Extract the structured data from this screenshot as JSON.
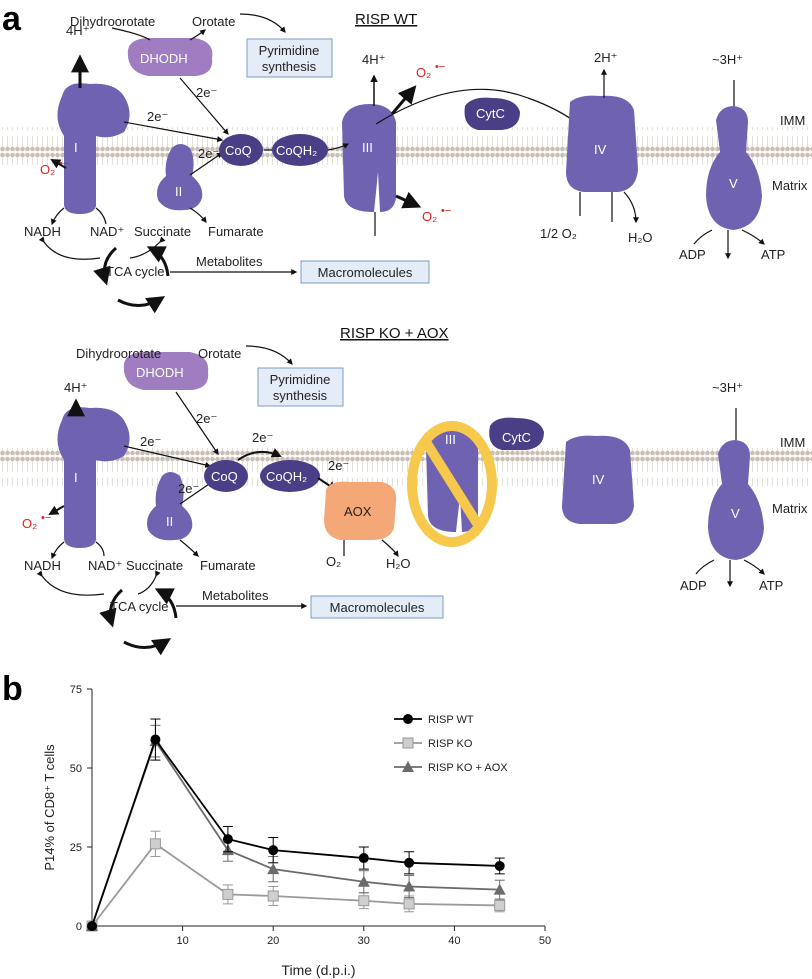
{
  "panel_a": {
    "label": "a",
    "wt": {
      "title": "RISP WT",
      "dhodh": "DHODH",
      "dihydroorotate": "Dihydroorotate",
      "orotate": "Orotate",
      "pyrimidine_1": "Pyrimidine",
      "pyrimidine_2": "synthesis",
      "h_I": "4H⁺",
      "h_III": "4H⁺",
      "h_IV": "2H⁺",
      "h_V": "~3H⁺",
      "e_I": "2e⁻",
      "e_DH": "2e⁻",
      "e_II": "2e⁻",
      "coq": "CoQ",
      "coqh2": "CoQH₂",
      "c1": "I",
      "c2": "II",
      "c3": "III",
      "c4": "IV",
      "c5": "V",
      "cytc": "CytC",
      "o2rad_1": "O₂",
      "o2rad_3a": "O₂",
      "o2rad_3b": "O₂",
      "rad": "•−",
      "imm": "IMM",
      "matrix": "Matrix",
      "nadh": "NADH",
      "nad": "NAD⁺",
      "succinate": "Succinate",
      "fumarate": "Fumarate",
      "half_o2": "1/2 O₂",
      "h2o": "H₂O",
      "adp": "ADP",
      "atp": "ATP",
      "tca": "TCA cycle",
      "metabolites": "Metabolites",
      "macromolecules": "Macromolecules"
    },
    "ko": {
      "title": "RISP KO + AOX",
      "dhodh": "DHODH",
      "dihydroorotate": "Dihydroorotate",
      "orotate": "Orotate",
      "pyrimidine_1": "Pyrimidine",
      "pyrimidine_2": "synthesis",
      "h_I": "4H⁺",
      "h_V": "~3H⁺",
      "e_I": "2e⁻",
      "e_DH": "2e⁻",
      "e_II": "2e⁻",
      "e_Q1": "2e⁻",
      "e_Q2": "2e⁻",
      "coq": "CoQ",
      "coqh2": "CoQH₂",
      "aox": "AOX",
      "c1": "I",
      "c2": "II",
      "c3": "III",
      "c4": "IV",
      "c5": "V",
      "cytc": "CytC",
      "o2rad_1": "O₂",
      "rad": "•−",
      "imm": "IMM",
      "matrix": "Matrix",
      "nadh": "NADH",
      "nad": "NAD⁺",
      "succinate": "Succinate",
      "fumarate": "Fumarate",
      "o2": "O₂",
      "h2o": "H₂O",
      "adp": "ADP",
      "atp": "ATP",
      "tca": "TCA cycle",
      "metabolites": "Metabolites",
      "macromolecules": "Macromolecules"
    }
  },
  "panel_b": {
    "label": "b"
  },
  "colors": {
    "complex": "#6f62b0",
    "complex_dark": "#4a3f86",
    "dhodh": "#a07cc0",
    "aox": "#f5a877",
    "box": "#e4edf7",
    "no_sign": "#f6c84b",
    "membrane": "#cfc5bb"
  },
  "chart_data": {
    "type": "line",
    "xlabel": "Time (d.p.i.)",
    "ylabel": "P14% of CD8⁺ T cells",
    "xlim": [
      0,
      50
    ],
    "ylim": [
      0,
      75
    ],
    "xticks": [
      "10",
      "20",
      "30",
      "40",
      "50"
    ],
    "yticks": [
      "0",
      "25",
      "50",
      "75"
    ],
    "legend_position": "top-right",
    "x": [
      0,
      7,
      15,
      20,
      30,
      35,
      45
    ],
    "series": [
      {
        "name": "RISP WT",
        "marker": "circle",
        "color": "#000000",
        "values": [
          0,
          59,
          27.5,
          24,
          21.5,
          20,
          19
        ],
        "errors": [
          0,
          6.5,
          4,
          4,
          3.5,
          3.5,
          2.5
        ]
      },
      {
        "name": "RISP KO",
        "marker": "square",
        "color": "#9a9a9a",
        "values": [
          0,
          26,
          10,
          9.5,
          8,
          7,
          6.5
        ],
        "errors": [
          0,
          4,
          3,
          3,
          2.5,
          2.5,
          2
        ]
      },
      {
        "name": "RISP KO + AOX",
        "marker": "triangle",
        "color": "#6b6b6b",
        "values": [
          0,
          58.5,
          24,
          18,
          14,
          12.5,
          11.5
        ],
        "errors": [
          0,
          5,
          3.5,
          4,
          3.5,
          3.5,
          3
        ]
      }
    ]
  }
}
